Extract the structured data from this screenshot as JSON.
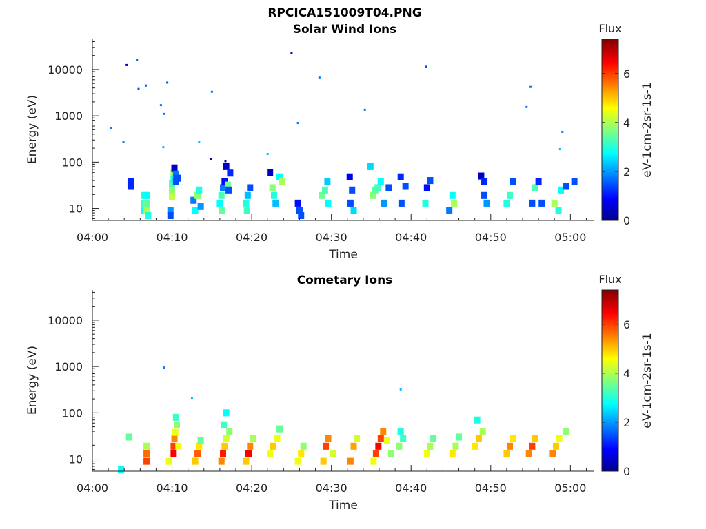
{
  "chart_data": {
    "type": "heatmap",
    "title": "RPCICA151009T04.PNG",
    "colormap": "jet",
    "panels": [
      {
        "title": "Solar Wind Ions",
        "xlabel": "Time",
        "ylabel": "Energy (eV)",
        "xtick_labels": [
          "04:00",
          "04:10",
          "04:20",
          "04:30",
          "04:40",
          "04:50",
          "05:00"
        ],
        "ytick_labels": [
          "10",
          "100",
          "1000",
          "10000"
        ],
        "yscale": "log",
        "ylim": [
          5.5,
          45000
        ],
        "colorbar": {
          "title": "Flux",
          "label": "eV-1cm-2sr-1s-1",
          "ticks": [
            "0",
            "2",
            "4",
            "6"
          ],
          "range": [
            0,
            7.4
          ]
        },
        "cells": [
          [
            2.3,
            540,
            1.8
          ],
          [
            3.9,
            270,
            1.8
          ],
          [
            4.3,
            12500,
            0.5
          ],
          [
            5.6,
            16000,
            1.5
          ],
          [
            5.8,
            3800,
            1.5
          ],
          [
            6.7,
            4500,
            1.5
          ],
          [
            8.6,
            1700,
            1.8
          ],
          [
            9.0,
            1100,
            1.8
          ],
          [
            8.9,
            210,
            2.3
          ],
          [
            9.4,
            5200,
            1.5
          ],
          [
            15.0,
            3300,
            1.8
          ],
          [
            13.4,
            270,
            2.3
          ],
          [
            14.9,
            115,
            0.5
          ],
          [
            22.0,
            150,
            2.3
          ],
          [
            25.0,
            23000,
            0.5
          ],
          [
            25.8,
            700,
            1.8
          ],
          [
            28.5,
            6700,
            1.8
          ],
          [
            34.2,
            1350,
            1.8
          ],
          [
            41.9,
            11500,
            1.5
          ],
          [
            54.5,
            1550,
            1.8
          ],
          [
            55.0,
            4200,
            1.8
          ],
          [
            59.0,
            450,
            1.8
          ],
          [
            58.7,
            190,
            2.3
          ],
          [
            4.8,
            38,
            1.2
          ],
          [
            4.8,
            30,
            1.2
          ],
          [
            6.5,
            9,
            2.8
          ],
          [
            6.5,
            13,
            3.2
          ],
          [
            6.5,
            19,
            3.0
          ],
          [
            6.8,
            9,
            4.0
          ],
          [
            6.8,
            13,
            3.5
          ],
          [
            6.8,
            19,
            2.8
          ],
          [
            7.0,
            7,
            3.0
          ],
          [
            9.8,
            9,
            2.0
          ],
          [
            9.8,
            7,
            1.5
          ],
          [
            10.0,
            18,
            4.2
          ],
          [
            10.0,
            25,
            3.8
          ],
          [
            10.0,
            35,
            3.3
          ],
          [
            10.2,
            45,
            3.0
          ],
          [
            10.2,
            60,
            4.0
          ],
          [
            10.3,
            75,
            0.5
          ],
          [
            10.5,
            55,
            1.8
          ],
          [
            10.5,
            38,
            1.5
          ],
          [
            10.7,
            45,
            1.5
          ],
          [
            12.7,
            15,
            1.8
          ],
          [
            12.9,
            9,
            2.8
          ],
          [
            13.2,
            19,
            3.8
          ],
          [
            13.4,
            25,
            3.0
          ],
          [
            13.6,
            11,
            2.0
          ],
          [
            16.0,
            13,
            2.8
          ],
          [
            16.2,
            19,
            3.3
          ],
          [
            16.3,
            9,
            3.5
          ],
          [
            16.4,
            28,
            1.8
          ],
          [
            16.7,
            105,
            0.5
          ],
          [
            16.8,
            80,
            0.5
          ],
          [
            16.6,
            38,
            1.0
          ],
          [
            17.0,
            32,
            3.6
          ],
          [
            17.1,
            25,
            1.5
          ],
          [
            17.3,
            58,
            1.2
          ],
          [
            19.3,
            13,
            3.0
          ],
          [
            19.5,
            19,
            2.3
          ],
          [
            19.4,
            9,
            3.2
          ],
          [
            19.8,
            28,
            1.5
          ],
          [
            22.3,
            60,
            0.5
          ],
          [
            22.6,
            28,
            3.8
          ],
          [
            22.8,
            19,
            3.0
          ],
          [
            23.0,
            13,
            2.3
          ],
          [
            23.5,
            48,
            2.8
          ],
          [
            23.8,
            38,
            4.0
          ],
          [
            25.8,
            13,
            1.0
          ],
          [
            26.0,
            9,
            1.5
          ],
          [
            26.2,
            7,
            1.5
          ],
          [
            28.8,
            19,
            3.6
          ],
          [
            29.2,
            25,
            3.3
          ],
          [
            29.5,
            38,
            2.4
          ],
          [
            29.6,
            13,
            2.8
          ],
          [
            32.4,
            13,
            1.5
          ],
          [
            32.6,
            25,
            1.5
          ],
          [
            32.8,
            9,
            2.5
          ],
          [
            32.3,
            48,
            0.8
          ],
          [
            34.9,
            80,
            2.5
          ],
          [
            35.2,
            19,
            3.8
          ],
          [
            35.5,
            25,
            3.5
          ],
          [
            35.8,
            28,
            3.3
          ],
          [
            36.2,
            38,
            2.8
          ],
          [
            36.6,
            13,
            2.0
          ],
          [
            37.2,
            28,
            1.5
          ],
          [
            38.8,
            13,
            1.5
          ],
          [
            39.3,
            30,
            1.5
          ],
          [
            38.7,
            48,
            1.2
          ],
          [
            42.0,
            28,
            1.0
          ],
          [
            42.4,
            40,
            1.5
          ],
          [
            41.8,
            13,
            3.0
          ],
          [
            44.8,
            9,
            1.8
          ],
          [
            45.2,
            19,
            2.8
          ],
          [
            45.4,
            13,
            4.0
          ],
          [
            48.8,
            50,
            0.5
          ],
          [
            49.2,
            19,
            1.5
          ],
          [
            49.5,
            13,
            2.0
          ],
          [
            49.2,
            38,
            1.2
          ],
          [
            52.0,
            13,
            3.0
          ],
          [
            52.4,
            19,
            3.2
          ],
          [
            52.8,
            38,
            1.5
          ],
          [
            55.2,
            13,
            1.5
          ],
          [
            55.6,
            28,
            3.3
          ],
          [
            56.0,
            38,
            1.2
          ],
          [
            56.4,
            13,
            1.5
          ],
          [
            58.0,
            13,
            4.0
          ],
          [
            58.5,
            9,
            3.0
          ],
          [
            58.8,
            25,
            2.8
          ],
          [
            59.5,
            30,
            1.5
          ],
          [
            60.5,
            38,
            1.5
          ]
        ]
      },
      {
        "title": "Cometary Ions",
        "xlabel": "Time",
        "ylabel": "Energy (eV)",
        "xtick_labels": [
          "04:00",
          "04:10",
          "04:20",
          "04:30",
          "04:40",
          "04:50",
          "05:00"
        ],
        "ytick_labels": [
          "10",
          "100",
          "1000",
          "10000"
        ],
        "yscale": "log",
        "ylim": [
          5.5,
          45000
        ],
        "colorbar": {
          "title": "Flux",
          "label": "eV-1cm-2sr-1s-1",
          "ticks": [
            "0",
            "2",
            "4",
            "6"
          ],
          "range": [
            0,
            7.4
          ]
        },
        "cells": [
          [
            9.0,
            950,
            1.8
          ],
          [
            12.5,
            210,
            2.3
          ],
          [
            38.7,
            320,
            2.3
          ],
          [
            4.6,
            30,
            3.5
          ],
          [
            3.6,
            6,
            2.8
          ],
          [
            6.8,
            9,
            6.0
          ],
          [
            6.8,
            13,
            5.7
          ],
          [
            6.8,
            19,
            4.0
          ],
          [
            9.6,
            9,
            4.5
          ],
          [
            10.2,
            13,
            6.5
          ],
          [
            10.2,
            19,
            6.0
          ],
          [
            10.3,
            28,
            5.5
          ],
          [
            10.4,
            38,
            4.5
          ],
          [
            10.6,
            55,
            3.8
          ],
          [
            10.5,
            80,
            3.2
          ],
          [
            10.8,
            19,
            4.5
          ],
          [
            12.9,
            9,
            5.0
          ],
          [
            13.2,
            13,
            5.8
          ],
          [
            13.4,
            19,
            4.8
          ],
          [
            13.6,
            25,
            3.5
          ],
          [
            16.2,
            9,
            5.5
          ],
          [
            16.4,
            13,
            6.3
          ],
          [
            16.6,
            19,
            5.0
          ],
          [
            16.8,
            28,
            4.3
          ],
          [
            16.5,
            55,
            3.2
          ],
          [
            16.8,
            100,
            2.8
          ],
          [
            17.2,
            40,
            3.8
          ],
          [
            19.3,
            9,
            5.0
          ],
          [
            19.6,
            13,
            6.5
          ],
          [
            19.8,
            19,
            5.5
          ],
          [
            20.2,
            28,
            4.0
          ],
          [
            22.3,
            13,
            4.5
          ],
          [
            22.7,
            19,
            5.0
          ],
          [
            23.2,
            28,
            4.5
          ],
          [
            23.5,
            45,
            3.5
          ],
          [
            25.8,
            9,
            4.5
          ],
          [
            26.2,
            13,
            4.8
          ],
          [
            26.5,
            19,
            3.8
          ],
          [
            29.0,
            9,
            5.0
          ],
          [
            29.3,
            19,
            6.0
          ],
          [
            29.6,
            28,
            5.5
          ],
          [
            30.2,
            13,
            4.3
          ],
          [
            32.4,
            9,
            5.5
          ],
          [
            32.8,
            19,
            5.3
          ],
          [
            33.2,
            28,
            4.3
          ],
          [
            35.3,
            9,
            4.5
          ],
          [
            35.6,
            13,
            6.0
          ],
          [
            35.9,
            19,
            6.5
          ],
          [
            36.2,
            28,
            6.0
          ],
          [
            36.5,
            40,
            5.5
          ],
          [
            37.0,
            25,
            4.5
          ],
          [
            37.5,
            13,
            3.8
          ],
          [
            38.5,
            19,
            3.8
          ],
          [
            39.0,
            28,
            3.2
          ],
          [
            38.7,
            40,
            3.0
          ],
          [
            42.0,
            13,
            4.5
          ],
          [
            42.4,
            19,
            4.0
          ],
          [
            42.8,
            28,
            3.5
          ],
          [
            45.2,
            13,
            4.8
          ],
          [
            45.6,
            19,
            4.0
          ],
          [
            46.0,
            30,
            3.5
          ],
          [
            48.0,
            19,
            4.8
          ],
          [
            48.5,
            28,
            5.0
          ],
          [
            49.0,
            40,
            4.0
          ],
          [
            48.3,
            70,
            3.0
          ],
          [
            52.0,
            13,
            5.0
          ],
          [
            52.4,
            19,
            5.5
          ],
          [
            52.8,
            28,
            4.8
          ],
          [
            54.8,
            13,
            5.5
          ],
          [
            55.2,
            19,
            6.0
          ],
          [
            55.6,
            28,
            5.0
          ],
          [
            57.8,
            13,
            5.5
          ],
          [
            58.2,
            19,
            5.0
          ],
          [
            58.6,
            28,
            4.5
          ],
          [
            59.5,
            40,
            3.8
          ]
        ]
      }
    ]
  }
}
